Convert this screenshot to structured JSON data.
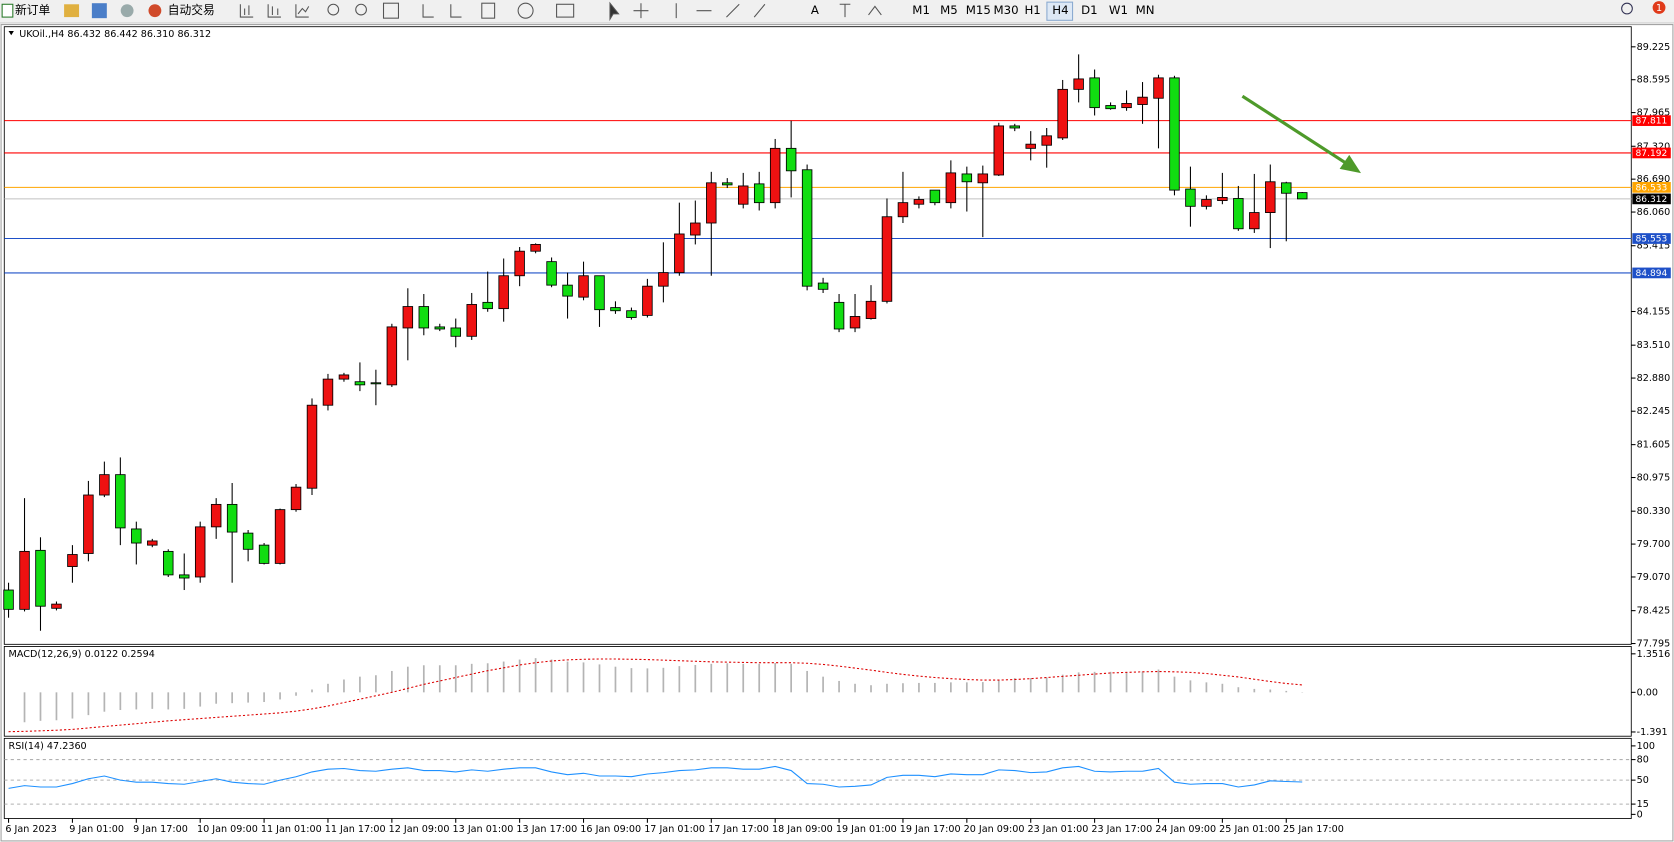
{
  "toolbar": {
    "new_order": "新订单",
    "auto_trading": "自动交易",
    "timeframes": [
      "M1",
      "M5",
      "M15",
      "M30",
      "H1",
      "H4",
      "D1",
      "W1",
      "MN"
    ],
    "notifications": 1
  },
  "chart_data": [
    {
      "type": "candlestick",
      "title": "UKOil.,H4  86.432 86.442 86.310 86.312",
      "categories": [
        "6 Jan 2023",
        null,
        null,
        null,
        "9 Jan 01:00",
        null,
        null,
        null,
        "9 Jan 17:00",
        null,
        null,
        null,
        "10 Jan 09:00",
        null,
        null,
        null,
        "11 Jan 01:00",
        null,
        null,
        null,
        "11 Jan 17:00",
        null,
        null,
        null,
        "12 Jan 09:00",
        null,
        null,
        null,
        "13 Jan 01:00",
        null,
        null,
        null,
        "13 Jan 17:00",
        null,
        null,
        null,
        "16 Jan 09:00",
        null,
        null,
        null,
        "17 Jan 01:00",
        null,
        null,
        null,
        "17 Jan 17:00",
        null,
        null,
        null,
        "18 Jan 09:00",
        null,
        null,
        null,
        "19 Jan 01:00",
        null,
        null,
        null,
        "19 Jan 17:00",
        null,
        null,
        null,
        "20 Jan 09:00",
        null,
        null,
        null,
        "23 Jan 01:00",
        null,
        null,
        null,
        "23 Jan 17:00",
        null,
        null,
        null,
        "24 Jan 09:00",
        null,
        null,
        null,
        "25 Jan 01:00",
        null,
        null,
        null,
        "25 Jan 17:00",
        null
      ],
      "open": [
        78.82,
        78.45,
        79.58,
        78.47,
        79.27,
        79.52,
        80.64,
        81.03,
        79.99,
        79.68,
        79.56,
        79.11,
        79.07,
        80.03,
        80.46,
        79.91,
        79.68,
        79.33,
        80.36,
        80.77,
        82.36,
        82.86,
        82.81,
        82.79,
        82.75,
        83.84,
        84.25,
        83.86,
        83.84,
        83.68,
        84.33,
        84.21,
        84.84,
        85.31,
        85.11,
        84.66,
        84.43,
        84.84,
        84.23,
        84.17,
        84.08,
        84.64,
        84.9,
        85.62,
        85.85,
        86.62,
        86.21,
        86.6,
        86.24,
        87.28,
        86.87,
        84.7,
        84.33,
        83.84,
        84.02,
        84.35,
        85.97,
        86.21,
        86.48,
        86.24,
        86.79,
        86.62,
        86.77,
        87.71,
        87.28,
        87.34,
        87.48,
        88.41,
        88.63,
        88.1,
        88.06,
        88.12,
        88.24,
        88.63,
        86.5,
        86.17,
        86.28,
        86.32,
        85.74,
        86.05,
        86.62,
        86.432
      ],
      "high": [
        78.96,
        80.58,
        79.83,
        78.6,
        79.68,
        80.91,
        81.28,
        81.36,
        80.13,
        79.8,
        79.6,
        79.52,
        80.13,
        80.58,
        80.87,
        79.97,
        79.72,
        80.38,
        80.85,
        82.49,
        82.96,
        82.98,
        83.18,
        83.04,
        83.92,
        84.6,
        84.49,
        83.92,
        84.02,
        84.51,
        84.92,
        85.17,
        85.39,
        85.46,
        85.19,
        84.9,
        85.11,
        84.84,
        84.35,
        84.23,
        84.78,
        85.48,
        86.24,
        86.28,
        86.83,
        86.71,
        86.81,
        86.83,
        87.46,
        87.81,
        86.97,
        84.8,
        84.49,
        84.49,
        84.66,
        86.32,
        86.83,
        86.36,
        86.48,
        87.05,
        86.93,
        86.95,
        87.77,
        87.75,
        87.61,
        87.67,
        88.59,
        89.08,
        88.79,
        88.16,
        88.39,
        88.55,
        88.69,
        88.67,
        86.93,
        86.38,
        86.81,
        86.56,
        86.79,
        86.97,
        86.64,
        86.442
      ],
      "low": [
        78.29,
        78.41,
        78.04,
        78.43,
        78.96,
        79.37,
        80.6,
        79.68,
        79.31,
        79.64,
        79.07,
        78.82,
        78.96,
        79.8,
        78.96,
        79.37,
        79.31,
        79.31,
        80.32,
        80.64,
        82.26,
        82.81,
        82.63,
        82.36,
        82.71,
        83.22,
        83.7,
        83.78,
        83.47,
        83.61,
        84.15,
        83.96,
        84.64,
        85.27,
        84.62,
        84.02,
        84.37,
        83.86,
        84.11,
        84.0,
        84.04,
        84.33,
        84.84,
        85.44,
        84.84,
        86.52,
        86.13,
        86.09,
        86.13,
        86.34,
        84.56,
        84.51,
        83.76,
        83.76,
        84.0,
        84.31,
        85.85,
        86.13,
        86.19,
        86.13,
        86.07,
        85.58,
        86.75,
        87.61,
        87.05,
        86.91,
        87.44,
        88.16,
        87.91,
        88.02,
        88.0,
        87.75,
        87.28,
        86.38,
        85.78,
        86.11,
        86.21,
        85.7,
        85.66,
        85.37,
        85.5,
        86.31
      ],
      "close": [
        78.45,
        79.56,
        78.51,
        78.55,
        79.5,
        80.64,
        81.03,
        80.01,
        79.72,
        79.76,
        79.11,
        79.05,
        80.03,
        80.46,
        79.93,
        79.6,
        79.33,
        80.36,
        80.79,
        82.36,
        82.86,
        82.94,
        82.75,
        82.77,
        83.86,
        84.25,
        83.84,
        83.82,
        83.68,
        84.29,
        84.21,
        84.84,
        85.31,
        85.44,
        84.66,
        84.45,
        84.84,
        84.19,
        84.17,
        84.04,
        84.64,
        84.9,
        85.64,
        85.85,
        86.62,
        86.58,
        86.56,
        86.24,
        87.28,
        86.85,
        84.64,
        84.58,
        83.82,
        84.06,
        84.35,
        85.97,
        86.24,
        86.3,
        86.24,
        86.81,
        86.64,
        86.79,
        87.71,
        87.67,
        87.36,
        87.52,
        88.41,
        88.61,
        88.06,
        88.04,
        88.14,
        88.26,
        88.63,
        86.48,
        86.17,
        86.3,
        86.34,
        85.74,
        86.05,
        86.64,
        86.42,
        86.312
      ],
      "up_color": "#ee1111",
      "down_color": "#11dd11",
      "ylim": [
        77.78,
        89.61
      ],
      "yticks": [
        89.225,
        88.595,
        87.965,
        {
          "value": 87.32,
          "label": "87.320"
        },
        {
          "value": 86.69,
          "label": "86.690"
        },
        {
          "value": 86.06,
          "label": "86.060"
        },
        85.415,
        84.155,
        {
          "value": 83.51,
          "label": "83.510"
        },
        {
          "value": 82.88,
          "label": "82.880"
        },
        82.245,
        81.605,
        80.975,
        {
          "value": 80.33,
          "label": "80.330"
        },
        {
          "value": 79.7,
          "label": "79.700"
        },
        {
          "value": 79.07,
          "label": "79.070"
        },
        78.425,
        77.795
      ],
      "hlines": [
        {
          "value": 87.811,
          "color": "#ff0000",
          "label_color": "#ff0000"
        },
        {
          "value": 87.192,
          "color": "#ff0000",
          "label_color": "#ff0000"
        },
        {
          "value": 86.533,
          "color": "#ffa500",
          "label_color": "#ffa500"
        },
        {
          "value": 86.312,
          "color": "#c0c0c0",
          "label_color": "#000000"
        },
        {
          "value": 85.553,
          "color": "#1e50c8",
          "label_color": "#1e50c8"
        },
        {
          "value": 84.894,
          "color": "#1e50c8",
          "label_color": "#1e50c8"
        }
      ]
    },
    {
      "type": "bar",
      "title": "MACD(12,26,9) 0.0122 0.2594",
      "values": [
        null,
        -1.05,
        -1.0,
        -0.98,
        -0.92,
        -0.8,
        -0.68,
        -0.62,
        -0.6,
        -0.58,
        -0.6,
        -0.58,
        -0.5,
        -0.4,
        -0.38,
        -0.36,
        -0.34,
        -0.25,
        -0.12,
        0.1,
        0.3,
        0.45,
        0.55,
        0.6,
        0.75,
        0.9,
        0.95,
        0.95,
        0.95,
        1.0,
        1.02,
        1.08,
        1.15,
        1.2,
        1.15,
        1.08,
        1.05,
        0.98,
        0.9,
        0.85,
        0.84,
        0.86,
        0.92,
        0.96,
        1.0,
        1.02,
        1.0,
        1.0,
        1.03,
        1.0,
        0.75,
        0.55,
        0.4,
        0.3,
        0.25,
        0.3,
        0.32,
        0.33,
        0.33,
        0.35,
        0.35,
        0.36,
        0.45,
        0.5,
        0.5,
        0.52,
        0.62,
        0.7,
        0.72,
        0.72,
        0.72,
        0.73,
        0.8,
        0.55,
        0.42,
        0.35,
        0.3,
        0.18,
        0.12,
        0.1,
        0.05,
        0.0122
      ],
      "signal": [
        -1.38,
        -1.37,
        -1.35,
        -1.33,
        -1.3,
        -1.25,
        -1.2,
        -1.15,
        -1.1,
        -1.05,
        -1.0,
        -0.96,
        -0.92,
        -0.88,
        -0.84,
        -0.8,
        -0.76,
        -0.72,
        -0.66,
        -0.58,
        -0.48,
        -0.36,
        -0.24,
        -0.12,
        0.0,
        0.14,
        0.28,
        0.4,
        0.52,
        0.64,
        0.76,
        0.86,
        0.96,
        1.04,
        1.1,
        1.14,
        1.16,
        1.17,
        1.17,
        1.16,
        1.15,
        1.13,
        1.11,
        1.09,
        1.07,
        1.06,
        1.05,
        1.04,
        1.04,
        1.04,
        1.02,
        0.98,
        0.92,
        0.85,
        0.78,
        0.7,
        0.63,
        0.57,
        0.52,
        0.48,
        0.45,
        0.43,
        0.43,
        0.45,
        0.48,
        0.52,
        0.56,
        0.6,
        0.64,
        0.68,
        0.7,
        0.72,
        0.73,
        0.72,
        0.7,
        0.66,
        0.6,
        0.54,
        0.46,
        0.38,
        0.31,
        0.2594
      ],
      "color": "#b4b4b4",
      "signal_color": "#dd0000",
      "ylim": [
        -1.54,
        1.61
      ],
      "yticks": [
        1.3516,
        {
          "value": 0,
          "label": "0.00"
        },
        -1.391
      ]
    },
    {
      "type": "line",
      "title": "RSI(14) 47.2360",
      "values": [
        38,
        42,
        40,
        40,
        45,
        52,
        56,
        50,
        47,
        47,
        45,
        44,
        48,
        52,
        47,
        45,
        44,
        50,
        55,
        62,
        66,
        67,
        64,
        63,
        66,
        68,
        64,
        64,
        62,
        65,
        63,
        66,
        68,
        68,
        62,
        58,
        60,
        56,
        56,
        55,
        59,
        61,
        64,
        65,
        68,
        68,
        66,
        66,
        70,
        64,
        45,
        44,
        40,
        41,
        43,
        54,
        57,
        57,
        55,
        59,
        58,
        58,
        65,
        64,
        61,
        62,
        68,
        70,
        63,
        62,
        63,
        63,
        67,
        47,
        44,
        45,
        45,
        40,
        43,
        49,
        48,
        47.236
      ],
      "color": "#1e90ff",
      "ylim": [
        -6,
        111
      ],
      "yticks": [
        100,
        80,
        50,
        15,
        0
      ],
      "levels": [
        80,
        50,
        15
      ]
    }
  ]
}
